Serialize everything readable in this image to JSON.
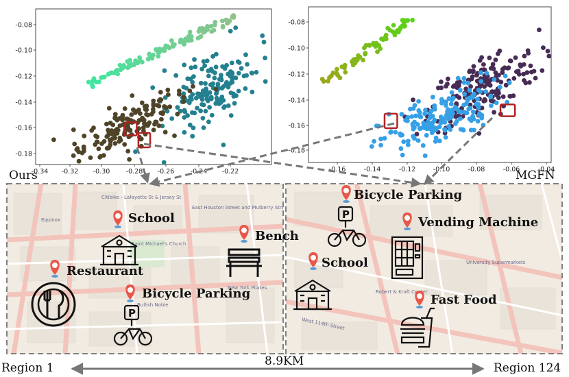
{
  "chart_data": [
    {
      "type": "scatter",
      "xlim": [
        -0.345,
        -0.205
      ],
      "ylim": [
        -0.186,
        -0.068
      ],
      "xticks": [
        "-0.34",
        "-0.32",
        "-0.30",
        "-0.28",
        "-0.26",
        "-0.24",
        "-0.22"
      ],
      "yticks": [
        "-0.08",
        "-0.10",
        "-0.12",
        "-0.14",
        "-0.16",
        "-0.18"
      ],
      "grid": false,
      "clusters": [
        {
          "shape": "band",
          "start": [
            -0.315,
            -0.125
          ],
          "end": [
            -0.226,
            -0.074
          ],
          "colors": [
            "#3fe6a0",
            "#90c08a"
          ],
          "points": 110
        },
        {
          "shape": "blob",
          "center": [
            -0.24,
            -0.128
          ],
          "spread": [
            0.018,
            0.018
          ],
          "color": "#24808f",
          "points": 160
        },
        {
          "shape": "blob",
          "center": [
            -0.292,
            -0.158
          ],
          "spread": [
            0.022,
            0.012
          ],
          "color": "#4f4429",
          "points": 170
        }
      ],
      "highlight_boxes": [
        {
          "x": [
            -0.292,
            -0.285
          ],
          "y": [
            -0.154,
            -0.164
          ]
        },
        {
          "x": [
            -0.284,
            -0.277
          ],
          "y": [
            -0.162,
            -0.173
          ]
        }
      ]
    },
    {
      "type": "scatter",
      "xlim": [
        -0.172,
        -0.038
      ],
      "ylim": [
        -0.188,
        -0.07
      ],
      "xticks": [
        "-0.16",
        "-0.14",
        "-0.12",
        "-0.10",
        "-0.08",
        "-0.06",
        "-0.04"
      ],
      "yticks": [
        "-0.08",
        "-0.10",
        "-0.12",
        "-0.14",
        "-0.16",
        "-0.18"
      ],
      "grid": false,
      "clusters": [
        {
          "shape": "band",
          "start": [
            -0.162,
            -0.127
          ],
          "end": [
            -0.117,
            -0.08
          ],
          "colors": [
            "#9aa81a",
            "#5ad21c"
          ],
          "points": 70
        },
        {
          "shape": "blob",
          "center": [
            -0.075,
            -0.13
          ],
          "spread": [
            0.02,
            0.016
          ],
          "color": "#472c55",
          "points": 180
        },
        {
          "shape": "blob",
          "center": [
            -0.1,
            -0.155
          ],
          "spread": [
            0.022,
            0.014
          ],
          "color": "#36a0e6",
          "points": 180
        }
      ],
      "highlight_boxes": [
        {
          "x": [
            -0.13,
            -0.123
          ],
          "y": [
            -0.151,
            -0.162
          ]
        },
        {
          "x": [
            -0.066,
            -0.058
          ],
          "y": [
            -0.144,
            -0.153
          ]
        }
      ]
    }
  ],
  "labels": {
    "left_method": "Ours",
    "right_method": "MGFN",
    "region_left": "Region 1",
    "region_right": "Region 124",
    "distance": "8.9KM"
  },
  "map_text": {
    "left": [
      "Citibike - Lafayette St & Jersey St",
      "East Houston Street and Mulberry Street",
      "Saint Michael's Church",
      "Equinox",
      "New York Pilates",
      "Bullish Noble"
    ],
    "right": [
      "University Supermarkets",
      "West 114th Street",
      "Robert & Kraft Center"
    ]
  },
  "pois_left": [
    "School",
    "Bench",
    "Restaurant",
    "Bicycle Parking"
  ],
  "pois_right": [
    "Bicycle Parking",
    "Vending Machine",
    "School",
    "Fast Food"
  ],
  "colors": {
    "pin": "#e8574a",
    "map_bg": "#f1ebe2",
    "road": "#f2c6bd",
    "block": "#e6e1d8",
    "frame": "#808080",
    "box": "#b22222"
  }
}
